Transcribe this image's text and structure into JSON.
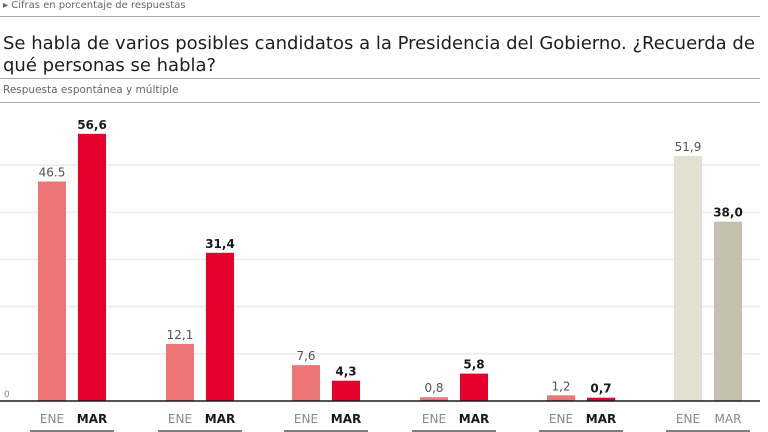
{
  "header": {
    "note": "Cifras en porcentaje de respuestas",
    "title": "Se habla de varios posibles candidatos a la Presidencia del Gobierno. ¿Recuerda de qué personas se habla?",
    "subtitle": "Respuesta espontánea y múltiple"
  },
  "colors": {
    "ene_red": "#ee7575",
    "mar_red": "#e4002b",
    "ene_grey": "#e2e1d3",
    "mar_grey": "#c3c0ad",
    "grid": "#ececec",
    "axis": "#1a1a1a"
  },
  "chart_data": {
    "type": "bar",
    "title": "Se habla de varios posibles candidatos a la Presidencia del Gobierno. ¿Recuerda de qué personas se habla?",
    "subtitle": "Respuesta espontánea y múltiple",
    "xlabel": "",
    "ylabel": "",
    "ylim": [
      0,
      60
    ],
    "grid": true,
    "gridlines": [
      10,
      20,
      30,
      40,
      50
    ],
    "y_tick_labels": [
      "0"
    ],
    "groups": [
      {
        "name": "group-1",
        "style": "red",
        "bars": [
          {
            "category": "ENE",
            "value": 46.5,
            "label": "46.5"
          },
          {
            "category": "MAR",
            "value": 56.6,
            "label": "56,6"
          }
        ]
      },
      {
        "name": "group-2",
        "style": "red",
        "bars": [
          {
            "category": "ENE",
            "value": 12.1,
            "label": "12,1"
          },
          {
            "category": "MAR",
            "value": 31.4,
            "label": "31,4"
          }
        ]
      },
      {
        "name": "group-3",
        "style": "red",
        "bars": [
          {
            "category": "ENE",
            "value": 7.6,
            "label": "7,6"
          },
          {
            "category": "MAR",
            "value": 4.3,
            "label": "4,3"
          }
        ]
      },
      {
        "name": "group-4",
        "style": "red",
        "bars": [
          {
            "category": "ENE",
            "value": 0.8,
            "label": "0,8"
          },
          {
            "category": "MAR",
            "value": 5.8,
            "label": "5,8"
          }
        ]
      },
      {
        "name": "group-5",
        "style": "red",
        "bars": [
          {
            "category": "ENE",
            "value": 1.2,
            "label": "1,2"
          },
          {
            "category": "MAR",
            "value": 0.7,
            "label": "0,7"
          }
        ]
      },
      {
        "name": "group-6",
        "style": "grey",
        "bars": [
          {
            "category": "ENE",
            "value": 51.9,
            "label": "51,9"
          },
          {
            "category": "MAR",
            "value": 38.0,
            "label": "38,0"
          }
        ]
      }
    ]
  }
}
